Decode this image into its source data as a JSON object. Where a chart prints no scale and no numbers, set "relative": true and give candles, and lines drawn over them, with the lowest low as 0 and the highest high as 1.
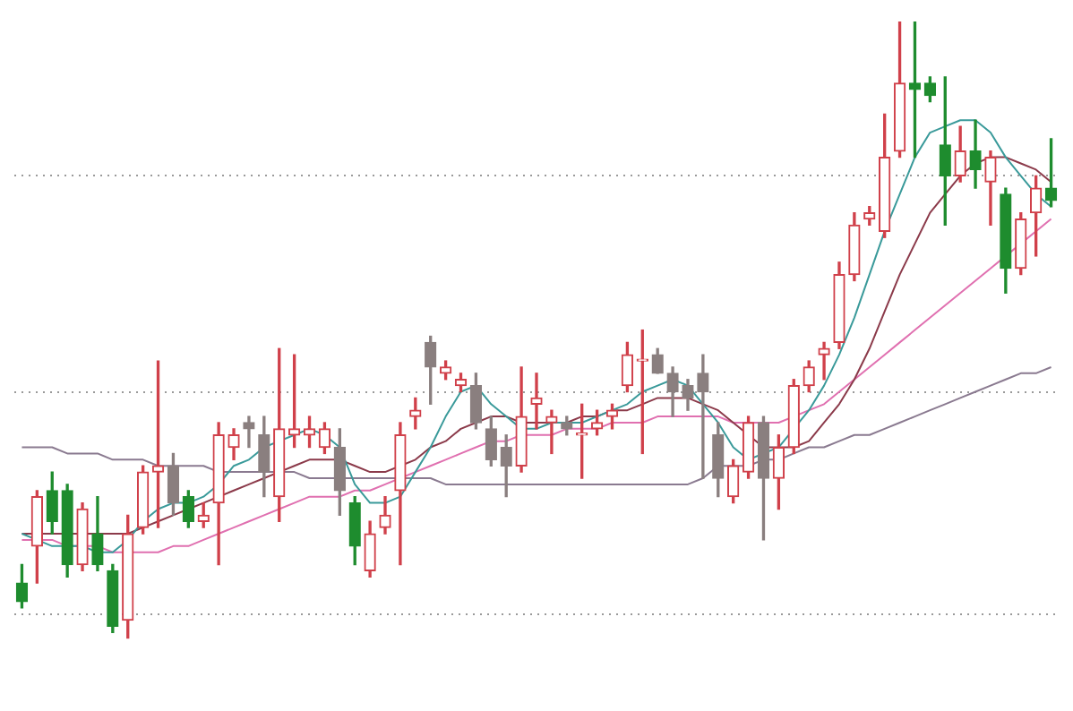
{
  "chart_data": {
    "type": "candlestick",
    "relative": true,
    "grid": "y",
    "legend": false,
    "marker": "none",
    "categories": [
      null,
      null,
      null,
      null,
      null,
      null,
      null,
      null,
      null,
      null,
      null,
      null,
      null,
      null,
      null,
      null,
      null,
      null,
      null,
      null,
      null,
      null,
      null,
      null,
      null,
      null,
      null,
      null,
      null,
      null,
      null,
      null,
      null,
      null,
      null,
      null,
      null,
      null,
      null,
      null,
      null,
      null,
      null,
      null,
      null,
      null,
      null,
      null,
      null,
      null,
      null,
      null,
      null,
      null,
      null,
      null,
      null,
      null,
      null,
      null,
      null,
      null,
      null,
      null,
      null,
      null,
      null,
      null,
      null
    ],
    "ohlc": [
      [
        0.09,
        0.12,
        0.05,
        0.06
      ],
      [
        0.15,
        0.24,
        0.09,
        0.23
      ],
      [
        0.24,
        0.27,
        0.17,
        0.19
      ],
      [
        0.24,
        0.25,
        0.1,
        0.12
      ],
      [
        0.12,
        0.22,
        0.11,
        0.21
      ],
      [
        0.17,
        0.23,
        0.11,
        0.12
      ],
      [
        0.11,
        0.12,
        0.01,
        0.02
      ],
      [
        0.03,
        0.2,
        0,
        0.17
      ],
      [
        0.18,
        0.28,
        0.17,
        0.27
      ],
      [
        0.27,
        0.45,
        0.18,
        0.28
      ],
      [
        0.28,
        0.3,
        0.2,
        0.22
      ],
      [
        0.23,
        0.24,
        0.18,
        0.19
      ],
      [
        0.19,
        0.22,
        0.18,
        0.2
      ],
      [
        0.22,
        0.35,
        0.12,
        0.33
      ],
      [
        0.31,
        0.34,
        0.29,
        0.33
      ],
      [
        0.35,
        0.36,
        0.31,
        0.34
      ],
      [
        0.33,
        0.36,
        0.23,
        0.27
      ],
      [
        0.23,
        0.47,
        0.19,
        0.34
      ],
      [
        0.33,
        0.46,
        0.31,
        0.34
      ],
      [
        0.33,
        0.36,
        0.31,
        0.34
      ],
      [
        0.31,
        0.35,
        0.3,
        0.34
      ],
      [
        0.31,
        0.34,
        0.2,
        0.24
      ],
      [
        0.22,
        0.23,
        0.12,
        0.15
      ],
      [
        0.11,
        0.19,
        0.1,
        0.17
      ],
      [
        0.18,
        0.23,
        0.17,
        0.2
      ],
      [
        0.24,
        0.35,
        0.12,
        0.33
      ],
      [
        0.36,
        0.39,
        0.34,
        0.37
      ],
      [
        0.48,
        0.49,
        0.38,
        0.44
      ],
      [
        0.43,
        0.45,
        0.42,
        0.44
      ],
      [
        0.41,
        0.43,
        0.4,
        0.42
      ],
      [
        0.41,
        0.43,
        0.34,
        0.35
      ],
      [
        0.34,
        0.36,
        0.28,
        0.29
      ],
      [
        0.31,
        0.33,
        0.23,
        0.28
      ],
      [
        0.28,
        0.44,
        0.27,
        0.36
      ],
      [
        0.38,
        0.43,
        0.34,
        0.39
      ],
      [
        0.35,
        0.37,
        0.3,
        0.36
      ],
      [
        0.35,
        0.36,
        0.33,
        0.34
      ],
      [
        0.33,
        0.38,
        0.26,
        0.33
      ],
      [
        0.34,
        0.37,
        0.33,
        0.35
      ],
      [
        0.36,
        0.38,
        0.34,
        0.37
      ],
      [
        0.41,
        0.48,
        0.4,
        0.46
      ],
      [
        0.45,
        0.5,
        0.3,
        0.45
      ],
      [
        0.46,
        0.47,
        0.43,
        0.43
      ],
      [
        0.43,
        0.44,
        0.36,
        0.4
      ],
      [
        0.41,
        0.42,
        0.37,
        0.39
      ],
      [
        0.43,
        0.46,
        0.26,
        0.4
      ],
      [
        0.33,
        0.35,
        0.23,
        0.26
      ],
      [
        0.23,
        0.29,
        0.22,
        0.28
      ],
      [
        0.27,
        0.36,
        0.26,
        0.35
      ],
      [
        0.35,
        0.36,
        0.16,
        0.26
      ],
      [
        0.26,
        0.33,
        0.21,
        0.31
      ],
      [
        0.31,
        0.42,
        0.3,
        0.41
      ],
      [
        0.41,
        0.45,
        0.4,
        0.44
      ],
      [
        0.46,
        0.48,
        0.42,
        0.47
      ],
      [
        0.48,
        0.61,
        0.47,
        0.59
      ],
      [
        0.59,
        0.69,
        0.58,
        0.67
      ],
      [
        0.68,
        0.7,
        0.67,
        0.69
      ],
      [
        0.66,
        0.85,
        0.65,
        0.78
      ],
      [
        0.79,
        1,
        0.78,
        0.9
      ],
      [
        0.9,
        1,
        0.78,
        0.89
      ],
      [
        0.9,
        0.91,
        0.87,
        0.88
      ],
      [
        0.8,
        0.91,
        0.67,
        0.75
      ],
      [
        0.75,
        0.83,
        0.74,
        0.79
      ],
      [
        0.79,
        0.84,
        0.73,
        0.76
      ],
      [
        0.74,
        0.79,
        0.67,
        0.78
      ],
      [
        0.72,
        0.73,
        0.56,
        0.6
      ],
      [
        0.6,
        0.69,
        0.59,
        0.68
      ],
      [
        0.69,
        0.75,
        0.62,
        0.73
      ],
      [
        0.73,
        0.81,
        0.7,
        0.71
      ]
    ],
    "colors": [
      "#1e8c2e",
      "#d0404a",
      "#1e8c2e",
      "#1e8c2e",
      "#d0404a",
      "#1e8c2e",
      "#1e8c2e",
      "#d0404a",
      "#d0404a",
      "#d0404a",
      "#8a7f7f",
      "#1e8c2e",
      "#d0404a",
      "#d0404a",
      "#d0404a",
      "#8a7f7f",
      "#8a7f7f",
      "#d0404a",
      "#d0404a",
      "#d0404a",
      "#d0404a",
      "#8a7f7f",
      "#1e8c2e",
      "#d0404a",
      "#d0404a",
      "#d0404a",
      "#d0404a",
      "#8a7f7f",
      "#d0404a",
      "#d0404a",
      "#8a7f7f",
      "#8a7f7f",
      "#8a7f7f",
      "#d0404a",
      "#d0404a",
      "#d0404a",
      "#8a7f7f",
      "#d0404a",
      "#d0404a",
      "#d0404a",
      "#d0404a",
      "#d0404a",
      "#8a7f7f",
      "#8a7f7f",
      "#8a7f7f",
      "#8a7f7f",
      "#8a7f7f",
      "#d0404a",
      "#d0404a",
      "#8a7f7f",
      "#d0404a",
      "#d0404a",
      "#d0404a",
      "#d0404a",
      "#d0404a",
      "#d0404a",
      "#d0404a",
      "#d0404a",
      "#d0404a",
      "#1e8c2e",
      "#1e8c2e",
      "#1e8c2e",
      "#d0404a",
      "#1e8c2e",
      "#d0404a",
      "#1e8c2e",
      "#d0404a",
      "#d0404a",
      "#1e8c2e"
    ],
    "series": [
      {
        "type": "line",
        "color": "#3a9a9a",
        "values": [
          0.17,
          0.16,
          0.15,
          0.15,
          0.15,
          0.14,
          0.14,
          0.16,
          0.19,
          0.21,
          0.22,
          0.22,
          0.23,
          0.25,
          0.28,
          0.29,
          0.31,
          0.32,
          0.33,
          0.34,
          0.33,
          0.31,
          0.25,
          0.22,
          0.22,
          0.23,
          0.27,
          0.31,
          0.36,
          0.4,
          0.41,
          0.38,
          0.36,
          0.34,
          0.34,
          0.35,
          0.35,
          0.35,
          0.36,
          0.37,
          0.38,
          0.4,
          0.41,
          0.42,
          0.41,
          0.38,
          0.35,
          0.31,
          0.29,
          0.3,
          0.31,
          0.34,
          0.37,
          0.41,
          0.46,
          0.52,
          0.59,
          0.66,
          0.72,
          0.78,
          0.82,
          0.83,
          0.84,
          0.84,
          0.82,
          0.78,
          0.75,
          0.72,
          0.7
        ]
      },
      {
        "type": "line",
        "color": "#8b3a4a",
        "values": [
          0.17,
          0.17,
          0.17,
          0.17,
          0.17,
          0.17,
          0.17,
          0.17,
          0.18,
          0.19,
          0.2,
          0.21,
          0.22,
          0.23,
          0.24,
          0.25,
          0.26,
          0.27,
          0.28,
          0.29,
          0.29,
          0.29,
          0.28,
          0.27,
          0.27,
          0.28,
          0.29,
          0.31,
          0.32,
          0.34,
          0.35,
          0.36,
          0.36,
          0.35,
          0.35,
          0.35,
          0.35,
          0.36,
          0.36,
          0.37,
          0.37,
          0.38,
          0.39,
          0.39,
          0.39,
          0.38,
          0.37,
          0.35,
          0.33,
          0.31,
          0.31,
          0.31,
          0.32,
          0.35,
          0.38,
          0.42,
          0.47,
          0.53,
          0.59,
          0.64,
          0.69,
          0.72,
          0.75,
          0.77,
          0.78,
          0.78,
          0.77,
          0.76,
          0.74
        ]
      },
      {
        "type": "line",
        "color": "#e070b0",
        "values": [
          0.16,
          0.16,
          0.16,
          0.15,
          0.15,
          0.15,
          0.14,
          0.14,
          0.14,
          0.14,
          0.15,
          0.15,
          0.16,
          0.17,
          0.18,
          0.19,
          0.2,
          0.21,
          0.22,
          0.23,
          0.23,
          0.23,
          0.24,
          0.24,
          0.25,
          0.26,
          0.27,
          0.28,
          0.29,
          0.3,
          0.31,
          0.32,
          0.32,
          0.33,
          0.33,
          0.33,
          0.34,
          0.34,
          0.34,
          0.35,
          0.35,
          0.35,
          0.36,
          0.36,
          0.36,
          0.36,
          0.36,
          0.35,
          0.35,
          0.35,
          0.35,
          0.36,
          0.37,
          0.38,
          0.4,
          0.42,
          0.44,
          0.46,
          0.48,
          0.5,
          0.52,
          0.54,
          0.56,
          0.58,
          0.6,
          0.62,
          0.64,
          0.66,
          0.68
        ]
      },
      {
        "type": "line",
        "color": "#8a7a90",
        "values": [
          0.31,
          0.31,
          0.31,
          0.3,
          0.3,
          0.3,
          0.29,
          0.29,
          0.29,
          0.28,
          0.28,
          0.28,
          0.28,
          0.27,
          0.27,
          0.27,
          0.27,
          0.27,
          0.27,
          0.26,
          0.26,
          0.26,
          0.26,
          0.26,
          0.26,
          0.26,
          0.26,
          0.26,
          0.25,
          0.25,
          0.25,
          0.25,
          0.25,
          0.25,
          0.25,
          0.25,
          0.25,
          0.25,
          0.25,
          0.25,
          0.25,
          0.25,
          0.25,
          0.25,
          0.25,
          0.26,
          0.28,
          0.28,
          0.28,
          0.29,
          0.29,
          0.3,
          0.31,
          0.31,
          0.32,
          0.33,
          0.33,
          0.34,
          0.35,
          0.36,
          0.37,
          0.38,
          0.39,
          0.4,
          0.41,
          0.42,
          0.43,
          0.43,
          0.44
        ]
      }
    ]
  }
}
